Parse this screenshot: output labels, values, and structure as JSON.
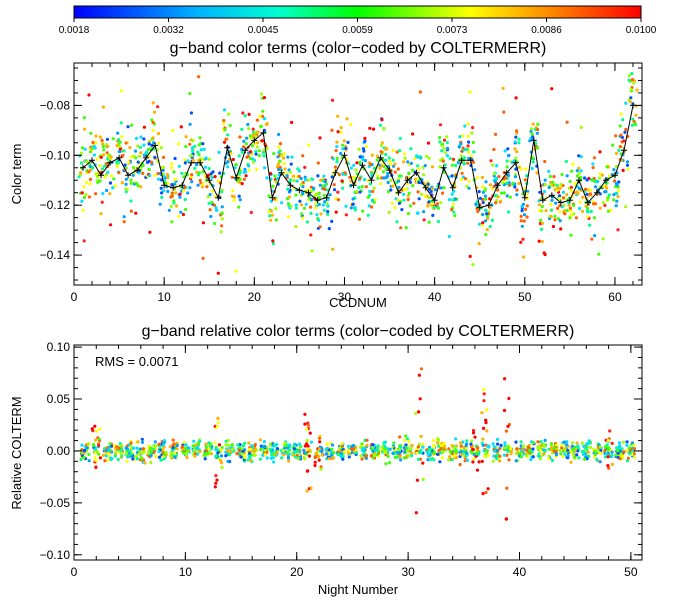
{
  "colorbar": {
    "ticks": [
      "0.0018",
      "0.0032",
      "0.0045",
      "0.0059",
      "0.0073",
      "0.0086",
      "0.0100"
    ],
    "range": [
      0.0018,
      0.01
    ],
    "colormap": [
      "#0000ff",
      "#00ffff",
      "#00ff00",
      "#ffff00",
      "#ff8000",
      "#ff0000"
    ]
  },
  "chart_data": [
    {
      "type": "scatter",
      "title": "g−band color terms  (color−coded by COLTERMERR)",
      "xlabel": "CCDNUM",
      "ylabel": "Color term",
      "xlim": [
        0,
        63
      ],
      "ylim": [
        -0.152,
        -0.063
      ],
      "xticks": [
        0,
        10,
        20,
        30,
        40,
        50,
        60
      ],
      "yticks": [
        -0.14,
        -0.12,
        -0.1,
        -0.08
      ],
      "ytick_labels": [
        "−0.14",
        "−0.12",
        "−0.10",
        "−0.08"
      ],
      "median_line": {
        "x": [
          1,
          2,
          3,
          4,
          5,
          6,
          7,
          8,
          9,
          10,
          11,
          12,
          13,
          14,
          15,
          16,
          17,
          18,
          19,
          20,
          21,
          22,
          23,
          24,
          25,
          26,
          27,
          28,
          29,
          30,
          31,
          32,
          33,
          34,
          35,
          36,
          37,
          38,
          39,
          40,
          41,
          42,
          43,
          44,
          45,
          46,
          47,
          48,
          49,
          50,
          51,
          52,
          53,
          54,
          55,
          56,
          57,
          58,
          59,
          60,
          61,
          62
        ],
        "y": [
          -0.105,
          -0.102,
          -0.108,
          -0.103,
          -0.101,
          -0.108,
          -0.106,
          -0.101,
          -0.096,
          -0.112,
          -0.113,
          -0.112,
          -0.103,
          -0.103,
          -0.11,
          -0.117,
          -0.097,
          -0.109,
          -0.098,
          -0.094,
          -0.091,
          -0.117,
          -0.107,
          -0.112,
          -0.114,
          -0.115,
          -0.118,
          -0.117,
          -0.107,
          -0.1,
          -0.112,
          -0.104,
          -0.11,
          -0.101,
          -0.106,
          -0.115,
          -0.11,
          -0.107,
          -0.113,
          -0.118,
          -0.105,
          -0.113,
          -0.102,
          -0.102,
          -0.121,
          -0.12,
          -0.112,
          -0.107,
          -0.103,
          -0.117,
          -0.094,
          -0.118,
          -0.116,
          -0.119,
          -0.118,
          -0.11,
          -0.119,
          -0.115,
          -0.11,
          -0.108,
          -0.098,
          -0.08
        ]
      }
    },
    {
      "type": "scatter",
      "title": "g−band relative color terms  (color−coded by COLTERMERR)",
      "xlabel": "Night Number",
      "ylabel": "Relative COLTERM",
      "xlim": [
        0,
        51
      ],
      "ylim": [
        -0.105,
        0.102
      ],
      "xticks": [
        0,
        10,
        20,
        30,
        40,
        50
      ],
      "yticks": [
        -0.1,
        -0.05,
        0.0,
        0.05,
        0.1
      ],
      "ytick_labels": [
        "−0.10",
        "−0.05",
        "0.00",
        "0.05",
        "0.10"
      ],
      "annotation": "RMS = 0.0071",
      "nights": [
        1,
        2,
        3,
        4,
        5,
        6,
        7,
        8,
        9,
        10,
        11,
        12,
        13,
        14,
        15,
        16,
        17,
        18,
        19,
        20,
        21,
        22,
        23,
        24,
        25,
        26,
        27,
        28,
        29,
        30,
        31,
        32,
        33,
        34,
        35,
        36,
        37,
        38,
        39,
        40,
        41,
        42,
        43,
        44,
        45,
        46,
        47,
        48,
        49,
        50
      ],
      "night_spread": [
        0.006,
        0.025,
        0.008,
        0.012,
        0.006,
        0.006,
        0.006,
        0.006,
        0.006,
        0.008,
        0.01,
        0.008,
        0.055,
        0.01,
        0.008,
        0.01,
        0.006,
        0.006,
        0.006,
        0.01,
        0.04,
        0.018,
        0.006,
        0.006,
        0.006,
        0.006,
        0.006,
        0.004,
        0.005,
        0.008,
        0.08,
        0.006,
        0.01,
        0.006,
        0.006,
        0.02,
        0.06,
        0.01,
        0.07,
        0.006,
        0.006,
        0.005,
        0.006,
        0.006,
        0.006,
        0.008,
        0.006,
        0.02,
        0.008,
        0.008
      ]
    }
  ]
}
